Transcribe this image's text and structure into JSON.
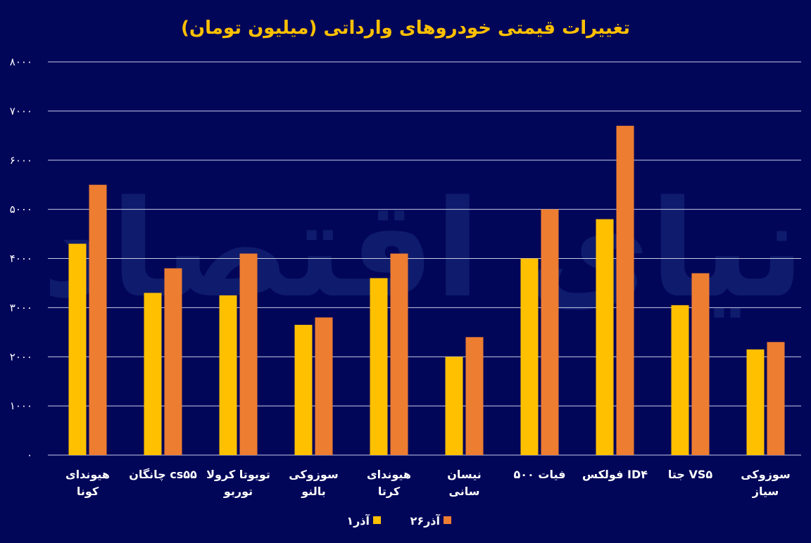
{
  "chart_data": {
    "type": "bar",
    "title": "تغییرات قیمتی خودروهای وارداتی (میلیون تومان)",
    "categories": [
      "هیوندای کونا",
      "چانگان cs۵۵",
      "تویوتا کرولا توربو",
      "سوزوکی بالنو",
      "هیوندای کرتا",
      "نیسان سانی",
      "فیات ۵۰۰",
      "فولکس ID۴",
      "جتا VS۵",
      "سوزوکی سیاز"
    ],
    "series": [
      {
        "name": "۱آذر",
        "color": "#FFC000",
        "values": [
          4300,
          3300,
          3250,
          2650,
          3600,
          2000,
          4000,
          4800,
          3050,
          2150
        ]
      },
      {
        "name": "۲۶آذر",
        "color": "#ED7D31",
        "values": [
          5500,
          3800,
          4100,
          2800,
          4100,
          2400,
          5000,
          6700,
          3700,
          2300
        ]
      }
    ],
    "yticks": [
      "۰",
      "۱۰۰۰",
      "۲۰۰۰",
      "۳۰۰۰",
      "۴۰۰۰",
      "۵۰۰۰",
      "۶۰۰۰",
      "۷۰۰۰",
      "۸۰۰۰"
    ],
    "ylim": [
      0,
      8000
    ],
    "grid": true,
    "legend": "bottom",
    "watermark": "دنیای اقتصاد",
    "colors": {
      "background": "#020659",
      "title": "#FFC000",
      "text": "#FFFFFF",
      "grid": "#C8CCE8"
    }
  }
}
